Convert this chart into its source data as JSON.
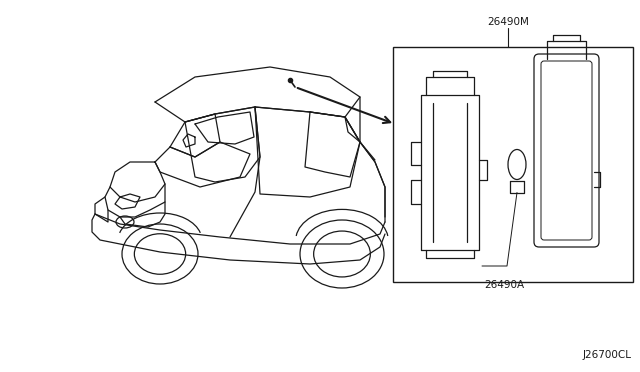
{
  "bg_color": "#ffffff",
  "line_color": "#1a1a1a",
  "label_26490M": "26490M",
  "label_26490A": "26490A",
  "label_bottom": "J26700CL",
  "figw": 6.4,
  "figh": 3.72,
  "dpi": 100
}
